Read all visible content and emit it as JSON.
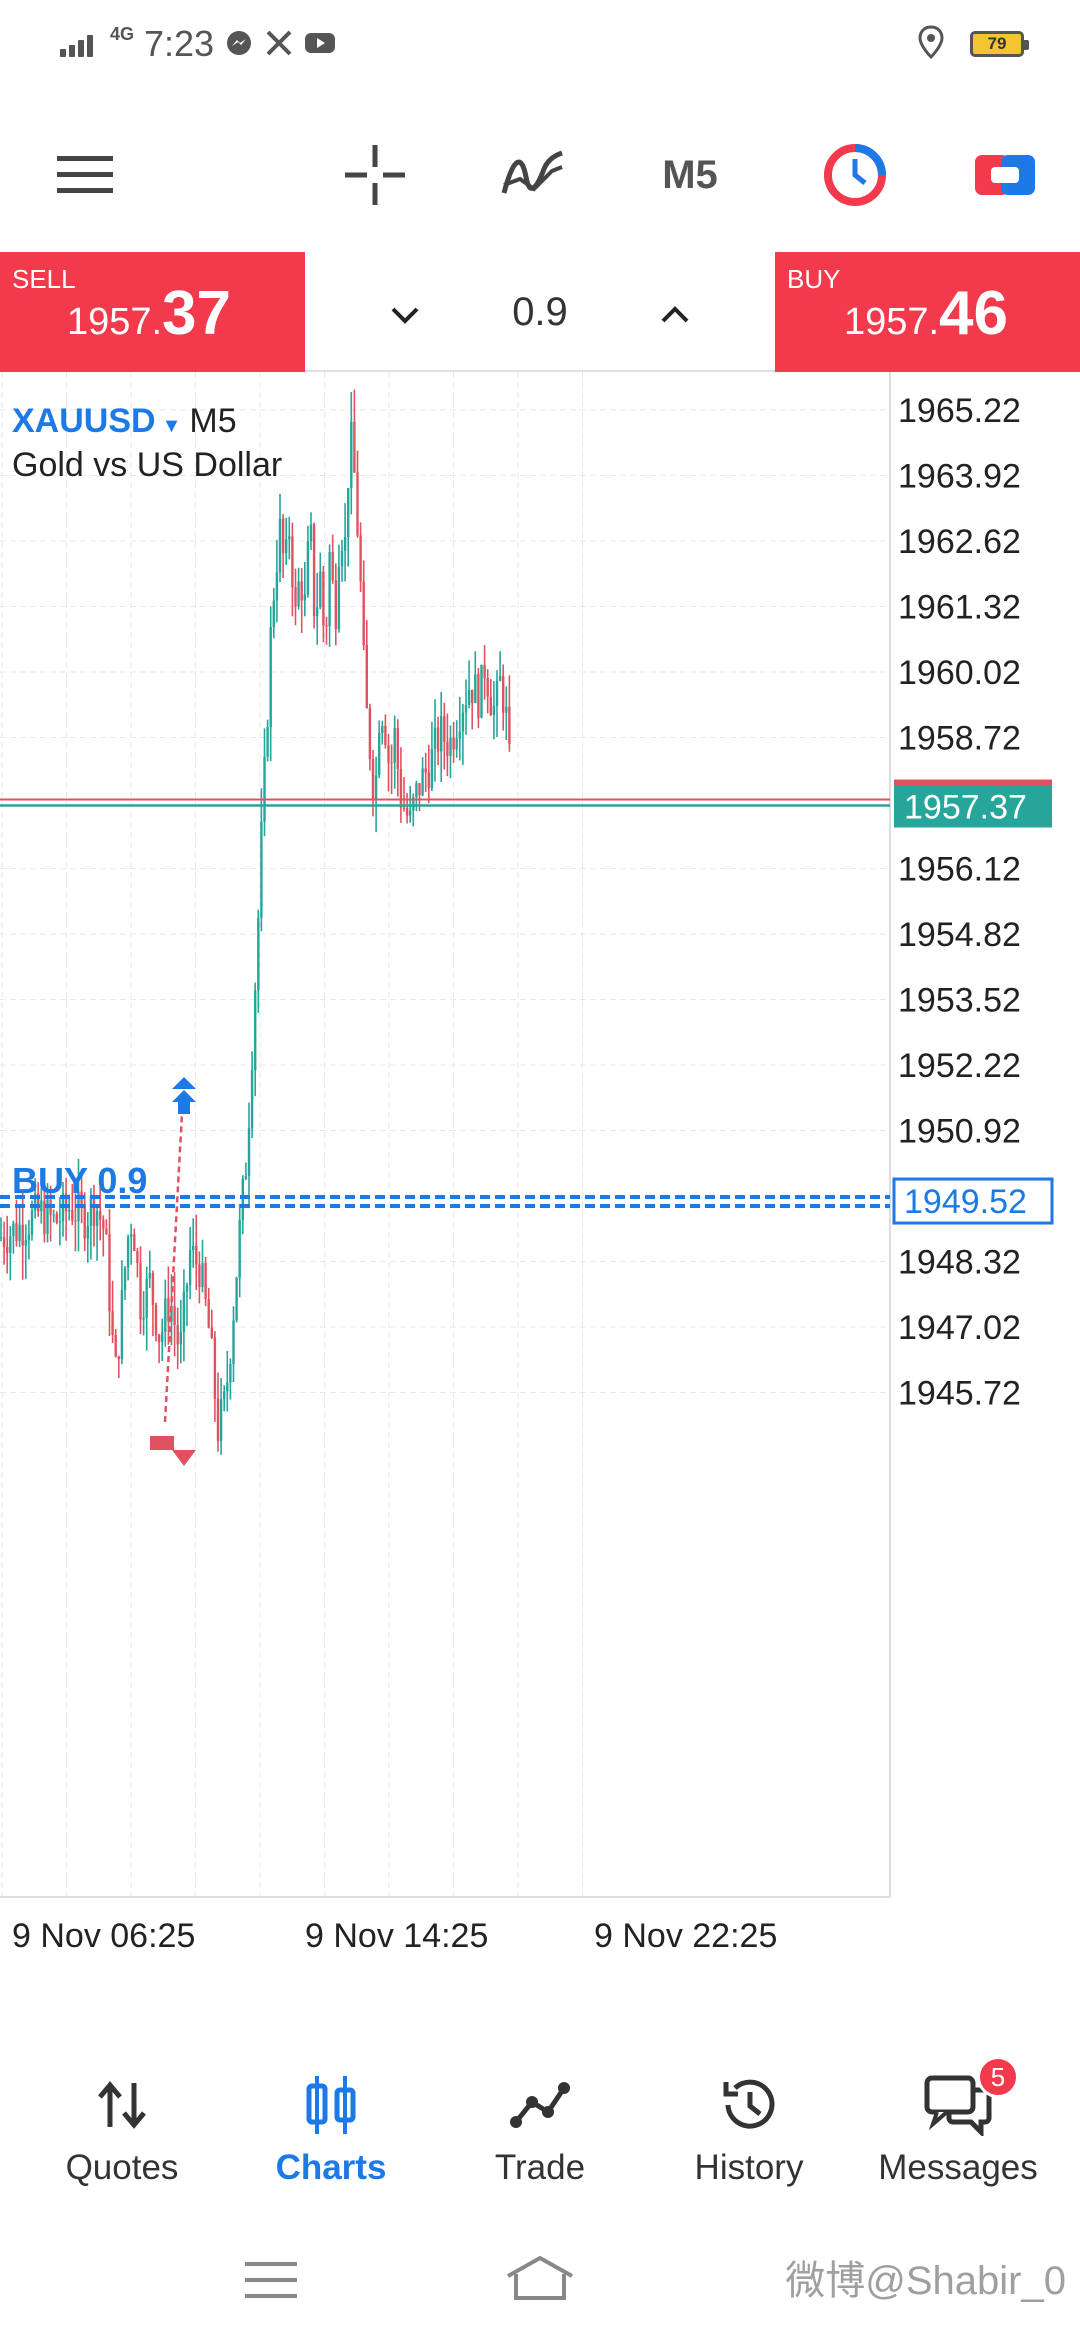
{
  "status_bar": {
    "network": "4G",
    "time": "7:23",
    "app_icons": [
      "messenger-icon",
      "x-icon",
      "youtube-icon"
    ],
    "battery": "79"
  },
  "toolbar": {
    "timeframe": "M5"
  },
  "trade_bar": {
    "sell_label": "SELL",
    "sell_price_small": "1957.",
    "sell_price_big": "37",
    "buy_label": "BUY",
    "buy_price_small": "1957.",
    "buy_price_big": "46",
    "volume": "0.9"
  },
  "chart": {
    "symbol": "XAUUSD",
    "timeframe": "M5",
    "description": "Gold vs US Dollar",
    "bid_line_label": "1957.37",
    "order_line_label": "1949.52",
    "order_text": "BUY 0.9",
    "colors": {
      "bull": "#26a69a",
      "bear": "#e0525f",
      "order": "#1d79e6",
      "bid": "#26a69a"
    }
  },
  "chart_data": {
    "type": "candlestick",
    "price_axis": [
      "1965.22",
      "1963.92",
      "1962.62",
      "1961.32",
      "1960.02",
      "1958.72",
      "1956.12",
      "1954.82",
      "1953.52",
      "1952.22",
      "1950.92",
      "1948.32",
      "1947.02",
      "1945.72"
    ],
    "time_axis": [
      "9 Nov 06:25",
      "9 Nov 14:25",
      "9 Nov 22:25"
    ],
    "ylim": [
      1944.5,
      1966.0
    ],
    "path": [
      [
        0,
        1948.8
      ],
      [
        20,
        1949.0
      ],
      [
        40,
        1949.3
      ],
      [
        55,
        1949.1
      ],
      [
        70,
        1949.4
      ],
      [
        85,
        1949.2
      ],
      [
        95,
        1949.5
      ],
      [
        105,
        1948.9
      ],
      [
        110,
        1947.5
      ],
      [
        115,
        1946.0
      ],
      [
        120,
        1947.0
      ],
      [
        125,
        1948.2
      ],
      [
        130,
        1949.2
      ],
      [
        135,
        1948.8
      ],
      [
        140,
        1947.5
      ],
      [
        150,
        1947.9
      ],
      [
        160,
        1946.8
      ],
      [
        170,
        1947.6
      ],
      [
        180,
        1946.5
      ],
      [
        190,
        1948.5
      ],
      [
        200,
        1948.2
      ],
      [
        210,
        1946.8
      ],
      [
        218,
        1945.0
      ],
      [
        225,
        1945.5
      ],
      [
        232,
        1947.0
      ],
      [
        240,
        1949.0
      ],
      [
        247,
        1950.5
      ],
      [
        252,
        1952.5
      ],
      [
        258,
        1955.0
      ],
      [
        262,
        1957.0
      ],
      [
        266,
        1958.5
      ],
      [
        270,
        1960.5
      ],
      [
        275,
        1962.0
      ],
      [
        280,
        1962.8
      ],
      [
        285,
        1962.0
      ],
      [
        290,
        1963.0
      ],
      [
        295,
        1961.0
      ],
      [
        300,
        1962.0
      ],
      [
        305,
        1961.3
      ],
      [
        310,
        1963.0
      ],
      [
        315,
        1961.0
      ],
      [
        320,
        1962.0
      ],
      [
        325,
        1960.5
      ],
      [
        330,
        1962.5
      ],
      [
        335,
        1961.0
      ],
      [
        340,
        1963.0
      ],
      [
        345,
        1962.5
      ],
      [
        350,
        1964.8
      ],
      [
        355,
        1963.8
      ],
      [
        360,
        1962.0
      ],
      [
        365,
        1959.5
      ],
      [
        370,
        1958.5
      ],
      [
        375,
        1957.5
      ],
      [
        380,
        1959.5
      ],
      [
        385,
        1959.0
      ],
      [
        390,
        1958.0
      ],
      [
        395,
        1958.8
      ],
      [
        400,
        1957.6
      ],
      [
        405,
        1957.3
      ],
      [
        410,
        1957.0
      ],
      [
        415,
        1957.5
      ],
      [
        420,
        1957.8
      ],
      [
        430,
        1958.2
      ],
      [
        440,
        1958.8
      ],
      [
        450,
        1958.6
      ],
      [
        460,
        1959.3
      ],
      [
        470,
        1959.8
      ],
      [
        480,
        1959.5
      ],
      [
        485,
        1960.2
      ],
      [
        490,
        1959.6
      ],
      [
        495,
        1959.2
      ],
      [
        500,
        1959.8
      ],
      [
        505,
        1959.4
      ],
      [
        508,
        1958.7
      ],
      [
        512,
        1957.2
      ]
    ],
    "bid": 1957.37,
    "order_price": 1949.52
  },
  "bottom_nav": {
    "items": [
      {
        "label": "Quotes"
      },
      {
        "label": "Charts"
      },
      {
        "label": "Trade"
      },
      {
        "label": "History"
      },
      {
        "label": "Messages"
      }
    ],
    "messages_badge": "5"
  },
  "watermark": "微博@Shabir_0"
}
